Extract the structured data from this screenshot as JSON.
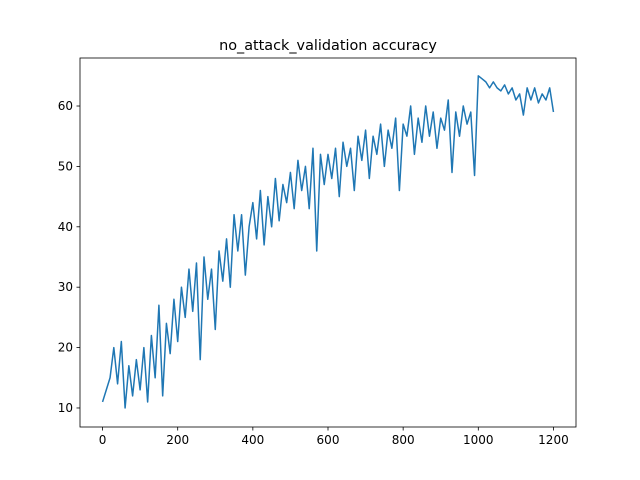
{
  "chart_data": {
    "type": "line",
    "title": "no_attack_validation accuracy",
    "x": [
      0,
      10,
      20,
      30,
      40,
      50,
      60,
      70,
      80,
      90,
      100,
      110,
      120,
      130,
      140,
      150,
      160,
      170,
      180,
      190,
      200,
      210,
      220,
      230,
      240,
      250,
      260,
      270,
      280,
      290,
      300,
      310,
      320,
      330,
      340,
      350,
      360,
      370,
      380,
      390,
      400,
      410,
      420,
      430,
      440,
      450,
      460,
      470,
      480,
      490,
      500,
      510,
      520,
      530,
      540,
      550,
      560,
      570,
      580,
      590,
      600,
      610,
      620,
      630,
      640,
      650,
      660,
      670,
      680,
      690,
      700,
      710,
      720,
      730,
      740,
      750,
      760,
      770,
      780,
      790,
      800,
      810,
      820,
      830,
      840,
      850,
      860,
      870,
      880,
      890,
      900,
      910,
      920,
      930,
      940,
      950,
      960,
      970,
      980,
      990,
      1000,
      1010,
      1020,
      1030,
      1040,
      1050,
      1060,
      1070,
      1080,
      1090,
      1100,
      1110,
      1120,
      1130,
      1140,
      1150,
      1160,
      1170,
      1180,
      1190,
      1200
    ],
    "series": [
      {
        "name": "no_attack_validation accuracy",
        "color": "#1f77b4",
        "values": [
          11,
          13,
          15,
          20,
          14,
          21,
          10,
          17,
          12,
          18,
          13,
          20,
          11,
          22,
          15,
          27,
          12,
          24,
          19,
          28,
          21,
          30,
          25,
          33,
          26,
          34,
          18,
          35,
          28,
          33,
          23,
          36,
          31,
          38,
          30,
          42,
          36,
          42,
          32,
          40,
          44,
          38,
          46,
          37,
          45,
          40,
          48,
          41,
          47,
          44,
          49,
          43,
          51,
          46,
          50,
          43,
          53,
          36,
          52,
          47,
          52,
          48,
          53,
          45,
          54,
          50,
          53,
          46,
          55,
          51,
          56,
          48,
          55,
          52,
          57,
          50,
          56,
          53,
          58,
          46,
          57,
          55,
          60,
          52,
          58,
          54,
          60,
          55,
          59,
          53,
          58,
          56,
          61,
          49,
          59,
          55,
          60,
          57,
          59,
          48.5,
          65,
          64.5,
          64,
          63,
          64,
          63,
          62.5,
          63.5,
          62,
          63,
          61,
          62,
          58.5,
          63,
          61,
          63,
          60.5,
          62,
          61,
          63,
          59
        ]
      }
    ],
    "xlim": [
      -60,
      1260
    ],
    "ylim": [
      6.85,
      67.95
    ],
    "xticks": [
      0,
      200,
      400,
      600,
      800,
      1000,
      1200
    ],
    "yticks": [
      10,
      20,
      30,
      40,
      50,
      60
    ]
  }
}
